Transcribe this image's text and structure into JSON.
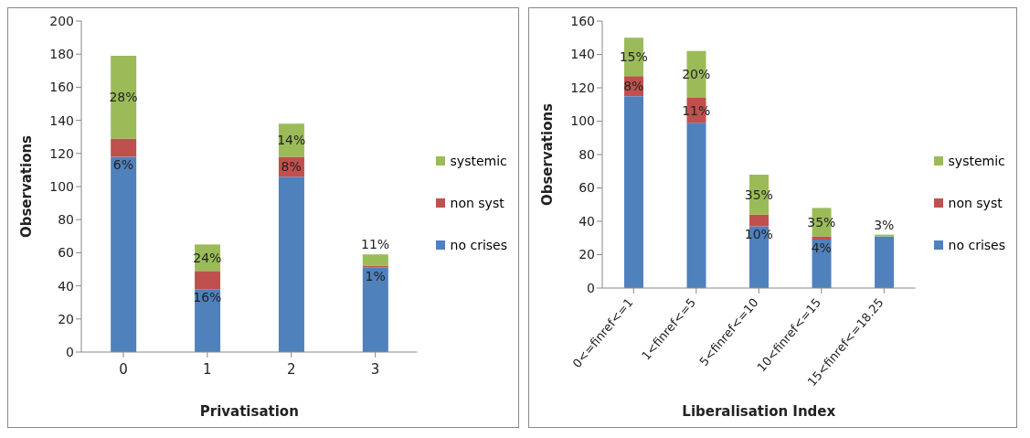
{
  "chart_data": [
    {
      "type": "bar",
      "stacked": true,
      "xlabel": "Privatisation",
      "ylabel": "Observations",
      "categories": [
        "0",
        "1",
        "2",
        "3"
      ],
      "ylim": [
        0,
        200
      ],
      "yticks": [
        0,
        20,
        40,
        60,
        80,
        100,
        120,
        140,
        160,
        180,
        200
      ],
      "grid": false,
      "legend": "right",
      "series": [
        {
          "name": "no crises",
          "color": "#4f81bd",
          "values": [
            118,
            38,
            106,
            51
          ]
        },
        {
          "name": "non syst",
          "color": "#c0504d",
          "values": [
            11,
            11,
            12,
            1
          ]
        },
        {
          "name": "systemic",
          "color": "#9bbb59",
          "values": [
            50,
            16,
            20,
            7
          ]
        }
      ],
      "annotations": [
        "28%",
        "6%",
        "24%",
        "16%",
        "14%",
        "8%",
        "11%",
        "1%"
      ]
    },
    {
      "type": "bar",
      "stacked": true,
      "xlabel": "Liberalisation Index",
      "ylabel": "Observations",
      "categories": [
        "0<=finref<=1",
        "1<finref<=5",
        "5<finref<=10",
        "10<finref<=15",
        "15<finref<=18.25"
      ],
      "ylim": [
        0,
        160
      ],
      "yticks": [
        0,
        20,
        40,
        60,
        80,
        100,
        120,
        140,
        160
      ],
      "grid": false,
      "legend": "right",
      "series": [
        {
          "name": "no crises",
          "color": "#4f81bd",
          "values": [
            115,
            99,
            37,
            29,
            31
          ]
        },
        {
          "name": "non syst",
          "color": "#c0504d",
          "values": [
            12,
            15,
            7,
            2,
            0
          ]
        },
        {
          "name": "systemic",
          "color": "#9bbb59",
          "values": [
            23,
            28,
            24,
            17,
            1
          ]
        }
      ],
      "annotations": [
        "15%",
        "8%",
        "20%",
        "11%",
        "35%",
        "10%",
        "35%",
        "4%",
        "3%"
      ]
    }
  ]
}
